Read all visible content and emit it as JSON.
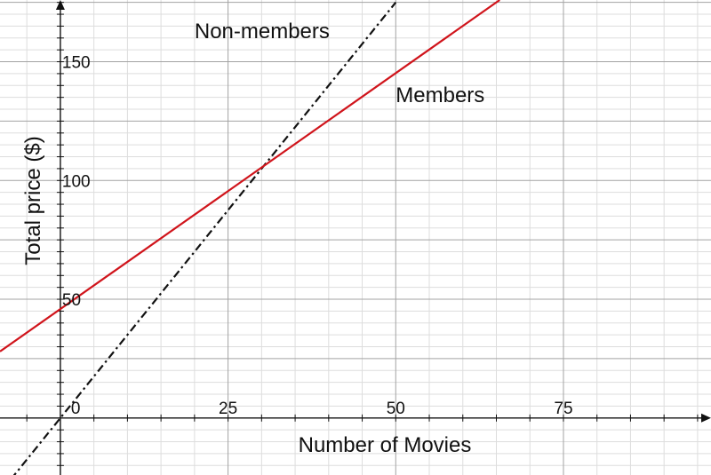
{
  "chart_data": {
    "type": "line",
    "xlabel": "Number of Movies",
    "ylabel": "Total price ($)",
    "xlim": [
      -9,
      97
    ],
    "ylim": [
      -24,
      176
    ],
    "x_ticks": [
      0,
      25,
      50,
      75
    ],
    "x_tick_labels": [
      "0",
      "25",
      "50",
      "75"
    ],
    "y_ticks": [
      50,
      100,
      150
    ],
    "y_tick_labels": [
      "50",
      "100",
      "150"
    ],
    "major_grid_step": 25,
    "minor_grid_step": 5,
    "grid": true,
    "series": [
      {
        "name": "Non-members",
        "style": "dash-dot",
        "color": "#111111",
        "x": [
          -9,
          50
        ],
        "y": [
          -31.5,
          175
        ]
      },
      {
        "name": "Members",
        "style": "solid",
        "color": "#d0141b",
        "x": [
          -9,
          65.5
        ],
        "y": [
          28,
          176
        ]
      }
    ],
    "annotations": [
      {
        "text": "Non-members",
        "x": 20,
        "y": 160
      },
      {
        "text": "Members",
        "x": 50,
        "y": 133
      }
    ]
  }
}
